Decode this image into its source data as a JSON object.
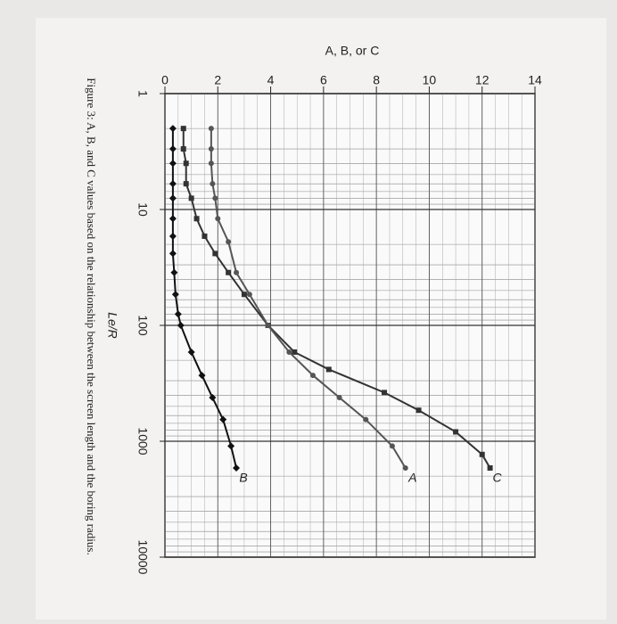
{
  "chart_data": {
    "type": "line",
    "title": "Figure 3: A, B, and C values based on the relationship between the screen length and the boring radius.",
    "x_label": "Le/R",
    "y_label": "A, B, or C",
    "log_x": true,
    "grid": true,
    "xlim": [
      1,
      10000
    ],
    "xticks": [
      1,
      10,
      100,
      1000,
      10000
    ],
    "ylim": [
      0,
      14
    ],
    "yticks": [
      0,
      2,
      4,
      6,
      8,
      10,
      12,
      14
    ],
    "series": [
      {
        "name": "C",
        "color": "#333333",
        "marker": "square",
        "x": [
          2,
          3,
          4,
          6,
          8,
          12,
          17,
          24,
          35,
          54,
          100,
          170,
          240,
          380,
          540,
          830,
          1300,
          1700
        ],
        "values": [
          0.7,
          0.7,
          0.8,
          0.8,
          1.0,
          1.2,
          1.5,
          1.9,
          2.4,
          3.0,
          3.9,
          4.9,
          6.2,
          8.3,
          9.6,
          11.0,
          12.0,
          12.3
        ]
      },
      {
        "name": "A",
        "color": "#555555",
        "marker": "circle",
        "x": [
          2,
          3,
          4,
          6,
          8,
          12,
          19,
          35,
          54,
          100,
          170,
          270,
          420,
          650,
          1100,
          1700
        ],
        "values": [
          1.75,
          1.75,
          1.75,
          1.8,
          1.9,
          2.0,
          2.4,
          2.7,
          3.2,
          3.9,
          4.7,
          5.6,
          6.6,
          7.6,
          8.6,
          9.1
        ]
      },
      {
        "name": "B",
        "color": "#111111",
        "marker": "diamond",
        "x": [
          2,
          3,
          4,
          6,
          8,
          12,
          17,
          24,
          35,
          54,
          80,
          100,
          170,
          270,
          420,
          650,
          1100,
          1700
        ],
        "values": [
          0.3,
          0.3,
          0.3,
          0.3,
          0.3,
          0.3,
          0.3,
          0.3,
          0.35,
          0.4,
          0.5,
          0.6,
          1.0,
          1.4,
          1.8,
          2.2,
          2.5,
          2.7
        ]
      }
    ]
  }
}
